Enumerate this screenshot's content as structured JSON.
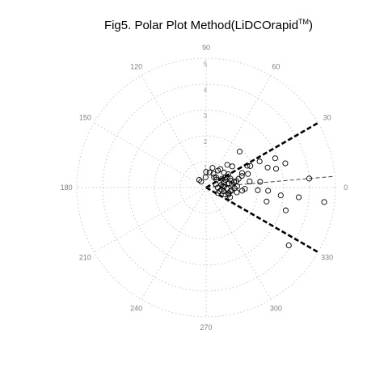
{
  "chart_data": {
    "type": "scatter",
    "coordinate_system": "polar",
    "title": "Fig5. Polar Plot Method(LiDCOrapid",
    "title_superscript": "TM",
    "title_suffix": ")",
    "radial_range": [
      0,
      5
    ],
    "radial_ticks": [
      "1",
      "2",
      "3",
      "4",
      "5"
    ],
    "angle_ticks": [
      {
        "deg": 0,
        "label": "0"
      },
      {
        "deg": 30,
        "label": "30"
      },
      {
        "deg": 60,
        "label": "60"
      },
      {
        "deg": 90,
        "label": "90"
      },
      {
        "deg": 120,
        "label": "120"
      },
      {
        "deg": 150,
        "label": "150"
      },
      {
        "deg": 180,
        "label": "180"
      },
      {
        "deg": 210,
        "label": "210"
      },
      {
        "deg": 240,
        "label": "240"
      },
      {
        "deg": 270,
        "label": "270"
      },
      {
        "deg": 300,
        "label": "300"
      },
      {
        "deg": 330,
        "label": "330"
      }
    ],
    "grid": true,
    "limit_lines": [
      {
        "angle": 30,
        "from": 0,
        "to": 5,
        "style": "thick-dashed"
      },
      {
        "angle": -30,
        "from": 0,
        "to": 5,
        "style": "thick-dashed"
      }
    ],
    "mean_line": {
      "angle": 5,
      "from": 0,
      "to": 5,
      "style": "thin-dashed"
    },
    "points": [
      [
        0.4,
        18
      ],
      [
        0.5,
        38
      ],
      [
        0.6,
        62
      ],
      [
        0.7,
        29
      ],
      [
        0.9,
        52
      ],
      [
        1.2,
        47
      ],
      [
        0.3,
        130
      ],
      [
        0.6,
        10
      ],
      [
        0.7,
        3
      ],
      [
        0.8,
        22
      ],
      [
        0.9,
        25
      ],
      [
        1.0,
        15
      ],
      [
        1.3,
        39
      ],
      [
        0.9,
        40
      ],
      [
        0.55,
        45
      ],
      [
        0.8,
        55
      ],
      [
        0.55,
        -15
      ],
      [
        0.6,
        -8
      ],
      [
        0.7,
        -12
      ],
      [
        0.8,
        -3
      ],
      [
        0.9,
        -18
      ],
      [
        1.0,
        -22
      ],
      [
        1.0,
        7
      ],
      [
        1.1,
        -1
      ],
      [
        1.2,
        12
      ],
      [
        1.3,
        15
      ],
      [
        1.45,
        18
      ],
      [
        1.2,
        2
      ],
      [
        1.2,
        -9
      ],
      [
        1.4,
        -5
      ],
      [
        1.5,
        22
      ],
      [
        1.8,
        28
      ],
      [
        1.7,
        18
      ],
      [
        1.9,
        26
      ],
      [
        2.3,
        26
      ],
      [
        2.9,
        23
      ],
      [
        2.5,
        18
      ],
      [
        2.8,
        15
      ],
      [
        3.2,
        17
      ],
      [
        1.7,
        8
      ],
      [
        2.1,
        6
      ],
      [
        4.0,
        5
      ],
      [
        1.5,
        -2
      ],
      [
        2.0,
        -3
      ],
      [
        2.4,
        -3
      ],
      [
        2.9,
        -6
      ],
      [
        3.6,
        -6
      ],
      [
        4.6,
        -7
      ],
      [
        2.4,
        -13
      ],
      [
        3.2,
        -16
      ],
      [
        3.9,
        -35
      ],
      [
        1.9,
        47
      ],
      [
        0.6,
        77
      ],
      [
        0.4,
        132
      ],
      [
        1.0,
        31
      ],
      [
        0.6,
        90
      ],
      [
        0.45,
        0
      ],
      [
        0.5,
        -25
      ],
      [
        0.8,
        72
      ],
      [
        0.9,
        10
      ],
      [
        1.1,
        11
      ],
      [
        0.4,
        93
      ],
      [
        1.0,
        -6
      ],
      [
        0.9,
        -14
      ],
      [
        0.65,
        5
      ],
      [
        0.7,
        16
      ],
      [
        0.8,
        -20
      ],
      [
        0.85,
        28
      ],
      [
        0.5,
        52
      ],
      [
        0.95,
        -9
      ],
      [
        1.0,
        20
      ]
    ]
  }
}
